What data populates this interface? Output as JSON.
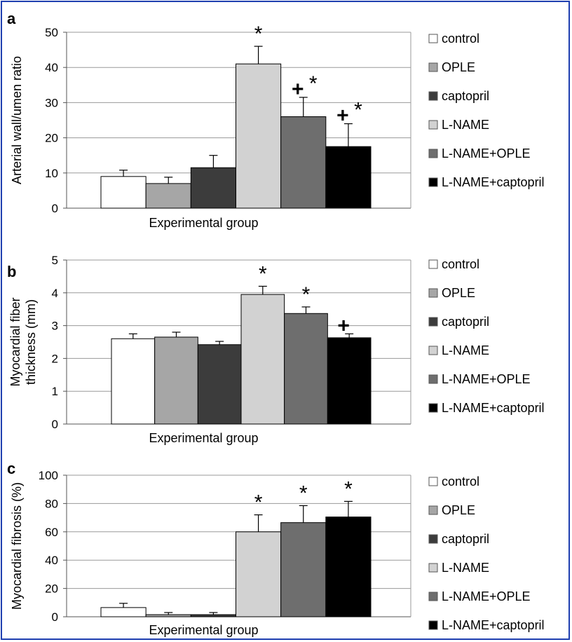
{
  "colors": {
    "frame": "#1f3fb0",
    "groups": [
      "#ffffff",
      "#a6a6a6",
      "#3c3c3c",
      "#d2d2d2",
      "#6e6e6e",
      "#000000"
    ]
  },
  "chart_data": [
    {
      "type": "bar",
      "panel_label": "a",
      "categories": [
        "control",
        "OPLE",
        "captopril",
        "L-NAME",
        "L-NAME+OPLE",
        "L-NAME+captopril"
      ],
      "values": [
        9,
        7,
        11.5,
        41,
        26,
        17.5
      ],
      "errors": [
        1.8,
        1.8,
        3.5,
        5,
        5.5,
        6.5
      ],
      "annotations": [
        "",
        "",
        "",
        "*",
        "+*",
        "+*"
      ],
      "ylim": [
        0,
        50
      ],
      "yticks": [
        "0",
        "10",
        "20",
        "30",
        "40",
        "50"
      ],
      "ylabel": "Arterial wall/umen ratio",
      "xlabel": "Experimental group",
      "legend": [
        "control",
        "OPLE",
        "captopril",
        "L-NAME",
        "L-NAME+OPLE",
        "L-NAME+captopril"
      ],
      "legend_position": "right",
      "grid": true
    },
    {
      "type": "bar",
      "panel_label": "b",
      "categories": [
        "control",
        "OPLE",
        "captopril",
        "L-NAME",
        "L-NAME+OPLE",
        "L-NAME+captopril"
      ],
      "values": [
        2.6,
        2.65,
        2.42,
        3.95,
        3.37,
        2.63
      ],
      "errors": [
        0.15,
        0.15,
        0.1,
        0.25,
        0.2,
        0.12
      ],
      "annotations": [
        "",
        "",
        "",
        "*",
        "*",
        "+"
      ],
      "ylim": [
        0,
        5
      ],
      "yticks": [
        "0",
        "1",
        "2",
        "3",
        "4",
        "5"
      ],
      "ylabel": [
        "Myocardial fiber",
        "thickness (mm)"
      ],
      "xlabel": "Experimental group",
      "legend": [
        "control",
        "OPLE",
        "captopril",
        "L-NAME",
        "L-NAME+OPLE",
        "L-NAME+captopril"
      ],
      "legend_position": "right",
      "grid": true
    },
    {
      "type": "bar",
      "panel_label": "c",
      "categories": [
        "control",
        "OPLE",
        "captopril",
        "L-NAME",
        "L-NAME+OPLE",
        "L-NAME+captopril"
      ],
      "values": [
        6.5,
        1.5,
        1.5,
        60,
        66.5,
        70.5
      ],
      "errors": [
        3,
        1.5,
        1.5,
        12,
        12,
        11
      ],
      "annotations": [
        "",
        "",
        "",
        "*",
        "*",
        "*"
      ],
      "ylim": [
        0,
        100
      ],
      "yticks": [
        "0",
        "20",
        "40",
        "60",
        "80",
        "100"
      ],
      "ylabel": "Myocardial fibrosis (%)",
      "xlabel": "Experimental group",
      "legend": [
        "control",
        "OPLE",
        "captopril",
        "L-NAME",
        "L-NAME+OPLE",
        "L-NAME+captopril"
      ],
      "legend_position": "right",
      "grid": true
    }
  ]
}
